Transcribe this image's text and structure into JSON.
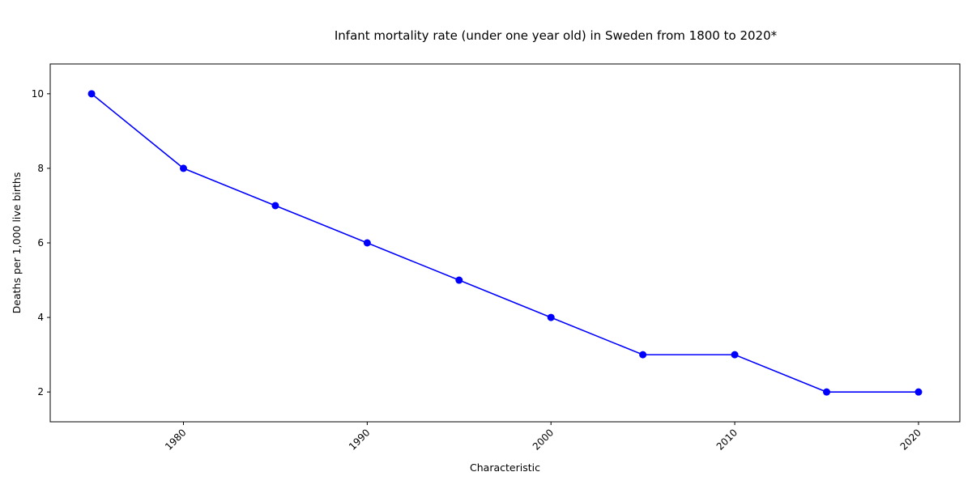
{
  "chart_data": {
    "type": "line",
    "title": "Infant mortality rate (under one year old) in Sweden from 1800 to 2020*",
    "xlabel": "Characteristic",
    "ylabel": "Deaths per 1,000 live births",
    "x": [
      1975,
      1980,
      1985,
      1990,
      1995,
      2000,
      2005,
      2010,
      2015,
      2020
    ],
    "series": [
      {
        "values": [
          10,
          8,
          7,
          6,
          5,
          4,
          3,
          3,
          2,
          2
        ],
        "color": "#0000ff",
        "marker": "circle"
      }
    ],
    "xlim": [
      1972.75,
      2022.25
    ],
    "ylim": [
      1.2,
      10.8
    ],
    "x_ticks": [
      1980,
      1990,
      2000,
      2010,
      2020
    ],
    "y_ticks": [
      2,
      4,
      6,
      8,
      10
    ],
    "x_tick_rotation": 45,
    "grid": false,
    "legend": "none"
  }
}
